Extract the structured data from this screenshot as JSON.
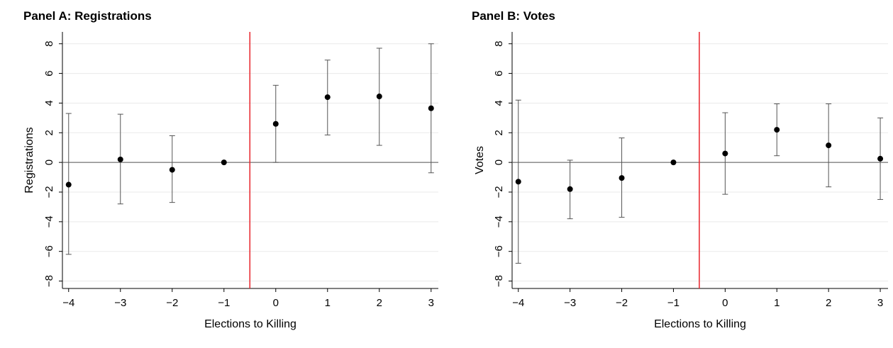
{
  "chart_data": [
    {
      "type": "errorbar",
      "title": "Panel A: Registrations",
      "x_label": "Elections to Killing",
      "y_label": "Registrations",
      "x": [
        -4,
        -3,
        -2,
        -1,
        0,
        1,
        2,
        3
      ],
      "values": [
        -1.5,
        0.2,
        -0.5,
        0,
        2.6,
        4.4,
        4.45,
        3.65
      ],
      "lower": [
        -6.2,
        -2.8,
        -2.7,
        null,
        0,
        1.85,
        1.15,
        -0.7
      ],
      "upper": [
        3.3,
        3.25,
        1.8,
        null,
        5.2,
        6.9,
        7.7,
        8.0
      ],
      "color": "#000000",
      "bar_color": "#555555",
      "xlim": [
        -4.12,
        3.14
      ],
      "ylim": [
        -8.5,
        8.8
      ],
      "xticks": [
        {
          "value": -4,
          "label": "−4"
        },
        {
          "value": -3,
          "label": "−3"
        },
        {
          "value": -2,
          "label": "−2"
        },
        {
          "value": -1,
          "label": "−1"
        },
        0,
        1,
        2,
        3
      ],
      "yticks": [
        {
          "value": -8,
          "label": "−8"
        },
        {
          "value": -6,
          "label": "−6"
        },
        {
          "value": -4,
          "label": "−4"
        },
        {
          "value": -2,
          "label": "−2"
        },
        0,
        2,
        4,
        6,
        8
      ],
      "vline": -0.5,
      "vline_color": "#e8242b",
      "hline": 0,
      "grid": true
    },
    {
      "type": "errorbar",
      "title": "Panel B: Votes",
      "x_label": "Elections to Killing",
      "y_label": "Votes",
      "x": [
        -4,
        -3,
        -2,
        -1,
        0,
        1,
        2,
        3
      ],
      "values": [
        -1.3,
        -1.8,
        -1.05,
        0,
        0.6,
        2.2,
        1.15,
        0.25
      ],
      "lower": [
        -6.8,
        -3.8,
        -3.7,
        null,
        -2.15,
        0.45,
        -1.65,
        -2.5
      ],
      "upper": [
        4.2,
        0.15,
        1.65,
        null,
        3.35,
        3.95,
        3.95,
        3.0
      ],
      "color": "#000000",
      "bar_color": "#555555",
      "xlim": [
        -4.12,
        3.15
      ],
      "ylim": [
        -8.5,
        8.8
      ],
      "xticks": [
        {
          "value": -4,
          "label": "−4"
        },
        {
          "value": -3,
          "label": "−3"
        },
        {
          "value": -2,
          "label": "−2"
        },
        {
          "value": -1,
          "label": "−1"
        },
        0,
        1,
        2,
        3
      ],
      "yticks": [
        {
          "value": -8,
          "label": "−8"
        },
        {
          "value": -6,
          "label": "−6"
        },
        {
          "value": -4,
          "label": "−4"
        },
        {
          "value": -2,
          "label": "−2"
        },
        0,
        2,
        4,
        6,
        8
      ],
      "vline": -0.5,
      "vline_color": "#e8242b",
      "hline": 0,
      "grid": true
    }
  ]
}
